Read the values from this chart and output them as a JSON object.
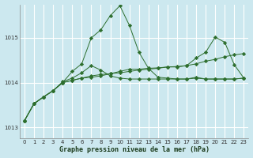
{
  "title": "Graphe pression niveau de la mer (hPa)",
  "background_color": "#cce8ef",
  "grid_color": "#b0d8e0",
  "line_color": "#2d6e2d",
  "xlim": [
    -0.5,
    23.5
  ],
  "ylim": [
    1012.75,
    1015.75
  ],
  "yticks": [
    1013,
    1014,
    1015
  ],
  "xticks": [
    0,
    1,
    2,
    3,
    4,
    5,
    6,
    7,
    8,
    9,
    10,
    11,
    12,
    13,
    14,
    15,
    16,
    17,
    18,
    19,
    20,
    21,
    22,
    23
  ],
  "series": [
    [
      1013.15,
      1013.53,
      1013.68,
      1013.82,
      1014.0,
      1014.25,
      1014.42,
      1015.0,
      1015.18,
      1015.5,
      1015.72,
      1015.28,
      1014.68,
      1014.32,
      1014.12,
      1014.1,
      1014.08,
      1014.08,
      1014.1,
      1014.08,
      1014.08,
      1014.08,
      1014.08,
      1014.1
    ],
    [
      1013.15,
      1013.53,
      1013.68,
      1013.82,
      1014.0,
      1014.05,
      1014.1,
      1014.15,
      1014.18,
      1014.2,
      1014.25,
      1014.3,
      1014.3,
      1014.32,
      1014.33,
      1014.35,
      1014.36,
      1014.38,
      1014.42,
      1014.48,
      1014.52,
      1014.58,
      1014.62,
      1014.65
    ],
    [
      1013.15,
      1013.53,
      1013.68,
      1013.82,
      1014.0,
      1014.05,
      1014.1,
      1014.12,
      1014.15,
      1014.2,
      1014.22,
      1014.25,
      1014.28,
      1014.3,
      1014.32,
      1014.35,
      1014.35,
      1014.38,
      1014.55,
      1014.68,
      1015.02,
      1014.9,
      1014.4,
      1014.1
    ],
    [
      1013.15,
      1013.53,
      1013.68,
      1013.82,
      1014.02,
      1014.1,
      1014.22,
      1014.38,
      1014.28,
      1014.15,
      1014.1,
      1014.08,
      1014.08,
      1014.08,
      1014.08,
      1014.08,
      1014.08,
      1014.08,
      1014.12,
      1014.08,
      1014.08,
      1014.08,
      1014.08,
      1014.1
    ]
  ]
}
